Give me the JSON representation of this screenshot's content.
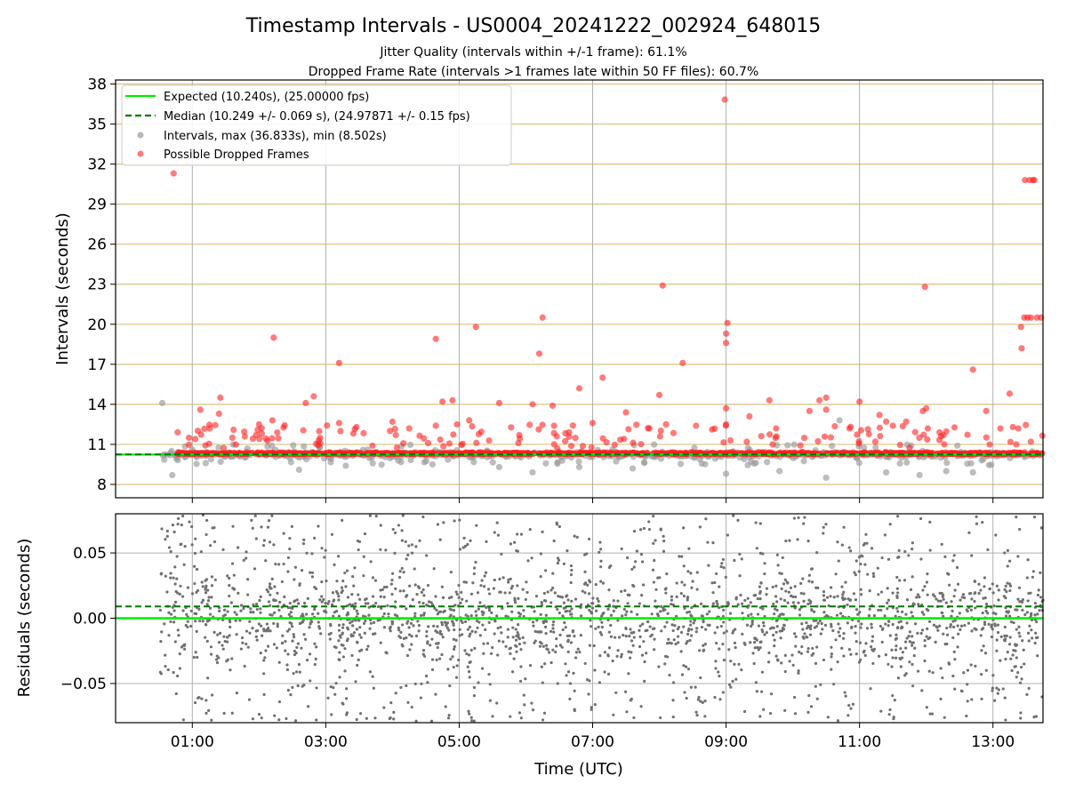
{
  "title": "Timestamp Intervals - US0004_20241222_002924_648015",
  "subtitle_1": "Jitter Quality (intervals within +/-1 frame): 61.1%",
  "subtitle_2": "Dropped Frame Rate (intervals >1 frames late within 50 FF files): 60.7%",
  "colors": {
    "expected": "#00ee00",
    "median": "#007700",
    "intervals": "#999999",
    "dropped": "#ff2222",
    "residuals": "#707070",
    "hgrid_top": "#d8c080",
    "grid": "#b0b0b0"
  },
  "chart_data": [
    {
      "type": "scatter",
      "name": "top-intervals",
      "ylabel": "Intervals (seconds)",
      "xlabel": "",
      "xlim_hours": [
        -0.15,
        13.75
      ],
      "ylim": [
        7,
        38.3
      ],
      "yticks": [
        8,
        11,
        14,
        17,
        20,
        23,
        26,
        29,
        32,
        35,
        38
      ],
      "expected_value": 10.24,
      "median_value": 10.249,
      "grid": true,
      "legend_placement": "upper-left",
      "legend": [
        {
          "label": "Expected (10.240s), (25.00000 fps)",
          "style": "solid-line"
        },
        {
          "label": "Median (10.249 +/- 0.069 s), (24.97871 +/- 0.15 fps)",
          "style": "dashed-line"
        },
        {
          "label": "Intervals, max (36.833s), min (8.502s)",
          "style": "gray-marker"
        },
        {
          "label": "Possible Dropped Frames",
          "style": "red-marker"
        }
      ],
      "baseline_range_hours": [
        0.52,
        13.75
      ],
      "notable_intervals": [
        {
          "x": 0.55,
          "y": 14.1,
          "kind": "interval"
        },
        {
          "x": 0.7,
          "y": 8.7,
          "kind": "interval"
        },
        {
          "x": 1.2,
          "y": 9.6,
          "kind": "interval"
        },
        {
          "x": 2.6,
          "y": 9.1,
          "kind": "interval"
        },
        {
          "x": 3.3,
          "y": 9.4,
          "kind": "interval"
        },
        {
          "x": 4.6,
          "y": 9.5,
          "kind": "interval"
        },
        {
          "x": 5.6,
          "y": 9.3,
          "kind": "interval"
        },
        {
          "x": 6.1,
          "y": 8.9,
          "kind": "interval"
        },
        {
          "x": 6.8,
          "y": 9.3,
          "kind": "interval"
        },
        {
          "x": 7.6,
          "y": 9.2,
          "kind": "interval"
        },
        {
          "x": 9.0,
          "y": 8.8,
          "kind": "interval"
        },
        {
          "x": 9.8,
          "y": 9.0,
          "kind": "interval"
        },
        {
          "x": 10.5,
          "y": 8.502,
          "kind": "interval"
        },
        {
          "x": 10.7,
          "y": 12.8,
          "kind": "interval"
        },
        {
          "x": 11.4,
          "y": 8.9,
          "kind": "interval"
        },
        {
          "x": 11.9,
          "y": 8.7,
          "kind": "interval"
        },
        {
          "x": 12.3,
          "y": 9.0,
          "kind": "interval"
        },
        {
          "x": 12.7,
          "y": 8.9,
          "kind": "interval"
        },
        {
          "x": 0.72,
          "y": 31.3,
          "kind": "dropped"
        },
        {
          "x": 0.78,
          "y": 11.9,
          "kind": "dropped"
        },
        {
          "x": 0.95,
          "y": 11.5,
          "kind": "dropped"
        },
        {
          "x": 1.12,
          "y": 13.6,
          "kind": "dropped"
        },
        {
          "x": 1.42,
          "y": 14.5,
          "kind": "dropped"
        },
        {
          "x": 1.4,
          "y": 13.3,
          "kind": "dropped"
        },
        {
          "x": 1.6,
          "y": 11.5,
          "kind": "dropped"
        },
        {
          "x": 1.98,
          "y": 12.1,
          "kind": "dropped"
        },
        {
          "x": 2.0,
          "y": 12.5,
          "kind": "dropped"
        },
        {
          "x": 2.22,
          "y": 19.0,
          "kind": "dropped"
        },
        {
          "x": 2.2,
          "y": 12.8,
          "kind": "dropped"
        },
        {
          "x": 2.7,
          "y": 14.1,
          "kind": "dropped"
        },
        {
          "x": 2.82,
          "y": 14.6,
          "kind": "dropped"
        },
        {
          "x": 3.2,
          "y": 17.1,
          "kind": "dropped"
        },
        {
          "x": 3.2,
          "y": 12.6,
          "kind": "dropped"
        },
        {
          "x": 3.22,
          "y": 12.0,
          "kind": "dropped"
        },
        {
          "x": 3.7,
          "y": 10.9,
          "kind": "dropped"
        },
        {
          "x": 4.0,
          "y": 12.7,
          "kind": "dropped"
        },
        {
          "x": 4.05,
          "y": 11.7,
          "kind": "dropped"
        },
        {
          "x": 4.25,
          "y": 12.2,
          "kind": "dropped"
        },
        {
          "x": 4.65,
          "y": 18.9,
          "kind": "dropped"
        },
        {
          "x": 4.65,
          "y": 12.4,
          "kind": "dropped"
        },
        {
          "x": 4.75,
          "y": 14.2,
          "kind": "dropped"
        },
        {
          "x": 4.9,
          "y": 14.3,
          "kind": "dropped"
        },
        {
          "x": 5.25,
          "y": 19.8,
          "kind": "dropped"
        },
        {
          "x": 5.15,
          "y": 12.8,
          "kind": "dropped"
        },
        {
          "x": 5.6,
          "y": 14.1,
          "kind": "dropped"
        },
        {
          "x": 5.9,
          "y": 11.7,
          "kind": "dropped"
        },
        {
          "x": 6.1,
          "y": 14.0,
          "kind": "dropped"
        },
        {
          "x": 6.25,
          "y": 20.5,
          "kind": "dropped"
        },
        {
          "x": 6.2,
          "y": 17.8,
          "kind": "dropped"
        },
        {
          "x": 6.4,
          "y": 13.9,
          "kind": "dropped"
        },
        {
          "x": 6.8,
          "y": 15.2,
          "kind": "dropped"
        },
        {
          "x": 7.0,
          "y": 12.6,
          "kind": "dropped"
        },
        {
          "x": 7.15,
          "y": 16.0,
          "kind": "dropped"
        },
        {
          "x": 7.5,
          "y": 13.4,
          "kind": "dropped"
        },
        {
          "x": 7.85,
          "y": 12.2,
          "kind": "dropped"
        },
        {
          "x": 8.05,
          "y": 22.9,
          "kind": "dropped"
        },
        {
          "x": 8.0,
          "y": 14.7,
          "kind": "dropped"
        },
        {
          "x": 8.1,
          "y": 12.5,
          "kind": "dropped"
        },
        {
          "x": 8.35,
          "y": 17.1,
          "kind": "dropped"
        },
        {
          "x": 8.55,
          "y": 12.4,
          "kind": "dropped"
        },
        {
          "x": 8.98,
          "y": 36.833,
          "kind": "dropped"
        },
        {
          "x": 9.02,
          "y": 20.1,
          "kind": "dropped"
        },
        {
          "x": 9.0,
          "y": 19.3,
          "kind": "dropped"
        },
        {
          "x": 9.0,
          "y": 18.6,
          "kind": "dropped"
        },
        {
          "x": 9.0,
          "y": 13.7,
          "kind": "dropped"
        },
        {
          "x": 9.0,
          "y": 12.5,
          "kind": "dropped"
        },
        {
          "x": 9.35,
          "y": 13.1,
          "kind": "dropped"
        },
        {
          "x": 9.65,
          "y": 14.3,
          "kind": "dropped"
        },
        {
          "x": 9.75,
          "y": 12.2,
          "kind": "dropped"
        },
        {
          "x": 10.25,
          "y": 13.5,
          "kind": "dropped"
        },
        {
          "x": 10.4,
          "y": 14.3,
          "kind": "dropped"
        },
        {
          "x": 10.5,
          "y": 14.5,
          "kind": "dropped"
        },
        {
          "x": 10.5,
          "y": 13.6,
          "kind": "dropped"
        },
        {
          "x": 10.85,
          "y": 12.2,
          "kind": "dropped"
        },
        {
          "x": 11.0,
          "y": 14.2,
          "kind": "dropped"
        },
        {
          "x": 11.3,
          "y": 13.2,
          "kind": "dropped"
        },
        {
          "x": 11.4,
          "y": 12.7,
          "kind": "dropped"
        },
        {
          "x": 11.5,
          "y": 12.4,
          "kind": "dropped"
        },
        {
          "x": 11.7,
          "y": 12.7,
          "kind": "dropped"
        },
        {
          "x": 11.95,
          "y": 13.5,
          "kind": "dropped"
        },
        {
          "x": 11.98,
          "y": 22.8,
          "kind": "dropped"
        },
        {
          "x": 12.0,
          "y": 13.7,
          "kind": "dropped"
        },
        {
          "x": 12.2,
          "y": 11.9,
          "kind": "dropped"
        },
        {
          "x": 12.7,
          "y": 16.6,
          "kind": "dropped"
        },
        {
          "x": 12.9,
          "y": 13.5,
          "kind": "dropped"
        },
        {
          "x": 13.25,
          "y": 14.8,
          "kind": "dropped"
        },
        {
          "x": 13.3,
          "y": 12.3,
          "kind": "dropped"
        },
        {
          "x": 13.42,
          "y": 19.8,
          "kind": "dropped"
        },
        {
          "x": 13.43,
          "y": 18.2,
          "kind": "dropped"
        },
        {
          "x": 13.47,
          "y": 20.5,
          "kind": "dropped"
        },
        {
          "x": 13.52,
          "y": 20.5,
          "kind": "dropped"
        },
        {
          "x": 13.57,
          "y": 20.5,
          "kind": "dropped"
        },
        {
          "x": 13.66,
          "y": 20.5,
          "kind": "dropped"
        },
        {
          "x": 13.72,
          "y": 20.5,
          "kind": "dropped"
        },
        {
          "x": 13.48,
          "y": 30.8,
          "kind": "dropped"
        },
        {
          "x": 13.55,
          "y": 30.8,
          "kind": "dropped"
        },
        {
          "x": 13.6,
          "y": 30.8,
          "kind": "dropped"
        },
        {
          "x": 13.62,
          "y": 30.8,
          "kind": "dropped"
        },
        {
          "x": 13.38,
          "y": 12.2,
          "kind": "dropped"
        },
        {
          "x": 13.35,
          "y": 11.0,
          "kind": "dropped"
        }
      ]
    },
    {
      "type": "scatter",
      "name": "bottom-residuals",
      "ylabel": "Residuals (seconds)",
      "xlabel": "Time (UTC)",
      "xlim_hours": [
        -0.15,
        13.75
      ],
      "ylim": [
        -0.08,
        0.08
      ],
      "yticks": [
        -0.05,
        0.0,
        0.05
      ],
      "ytick_labels": [
        "−0.05",
        "0.00",
        "0.05"
      ],
      "expected_value": 0.0,
      "median_value": 0.009,
      "residual_range_hours": [
        0.52,
        13.75
      ],
      "residual_spread": "roughly uniform between -0.08 and 0.08, denser near 0"
    }
  ],
  "xticks": {
    "hours": [
      1,
      3,
      5,
      7,
      9,
      11,
      13
    ],
    "labels": [
      "01:00",
      "03:00",
      "05:00",
      "07:00",
      "09:00",
      "11:00",
      "13:00"
    ]
  }
}
